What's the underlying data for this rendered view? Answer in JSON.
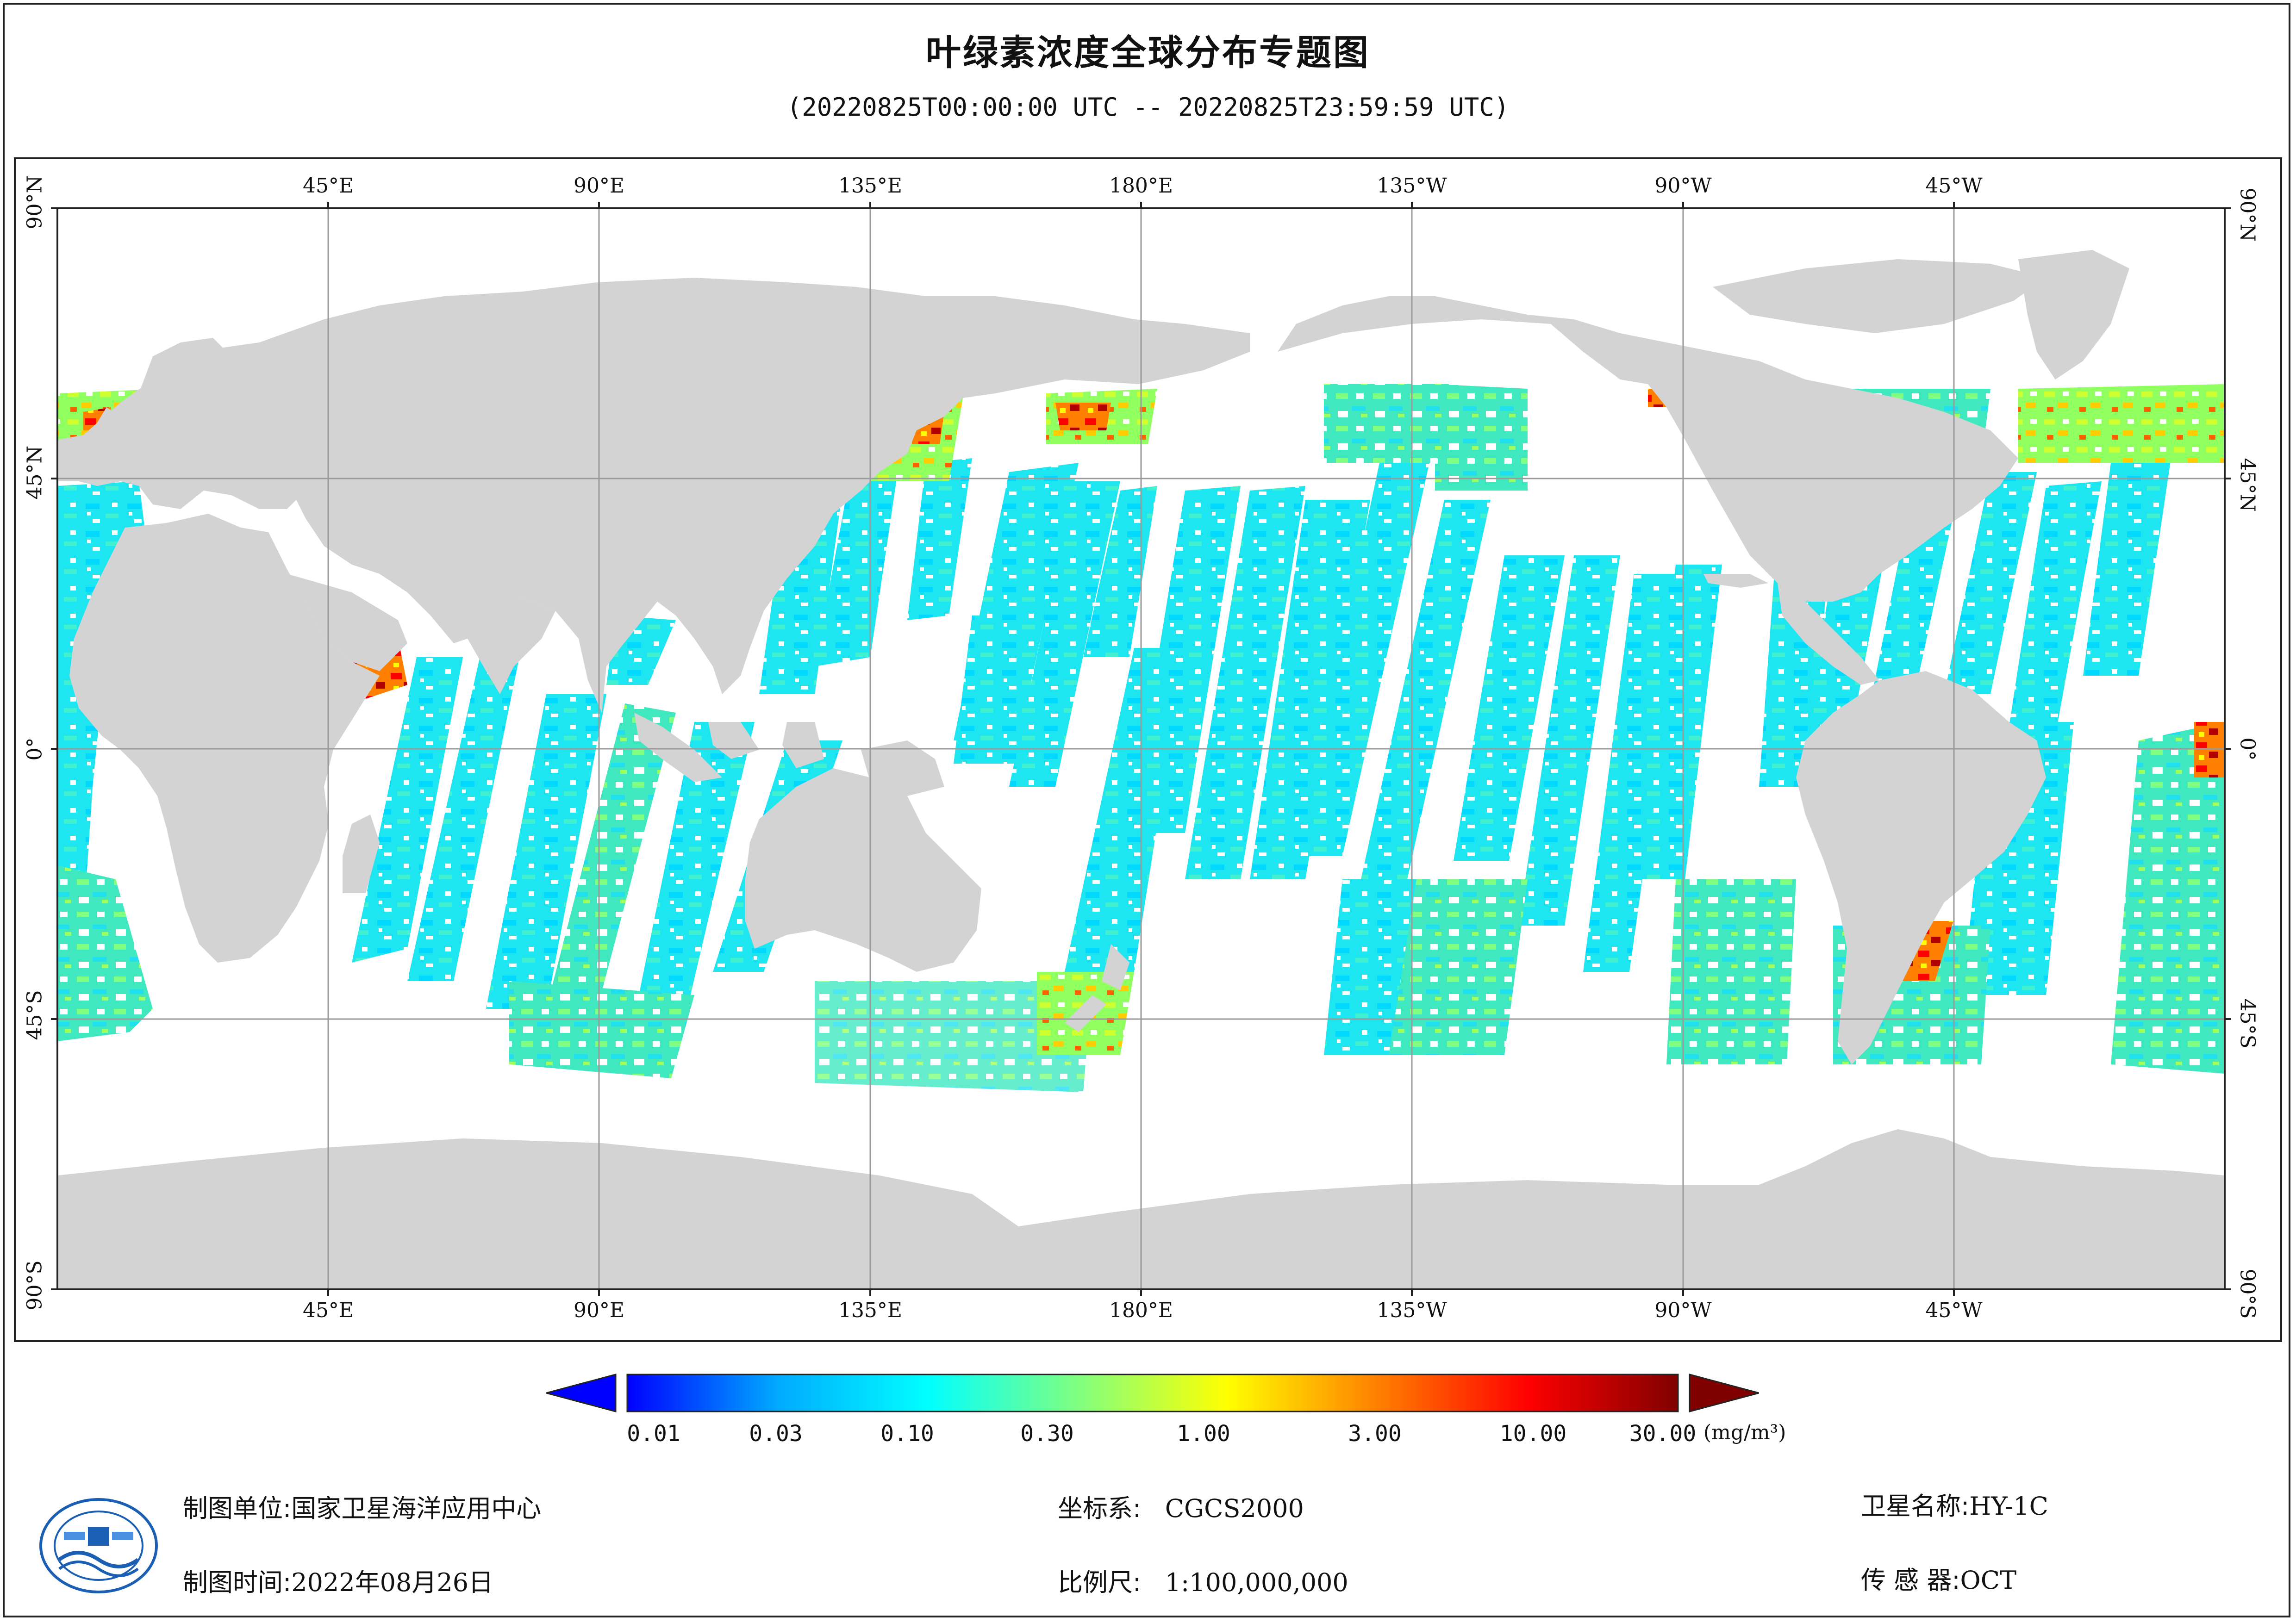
{
  "title": "叶绿素浓度全球分布专题图",
  "subtitle": "(20220825T00:00:00 UTC -- 20220825T23:59:59 UTC)",
  "map": {
    "lon_labels_top": [
      "45°E",
      "90°E",
      "135°E",
      "180°E",
      "135°W",
      "90°W",
      "45°W"
    ],
    "lon_labels_bottom": [
      "45°E",
      "90°E",
      "135°E",
      "180°E",
      "135°W",
      "90°W",
      "45°W"
    ],
    "lat_labels": [
      "90°N",
      "45°N",
      "0°",
      "45°S",
      "90°S"
    ],
    "land_color": "#d3d3d3",
    "grid_color": "#9a9a9a"
  },
  "legend": {
    "ticks": [
      "0.01",
      "0.03",
      "0.10",
      "0.30",
      "1.00",
      "3.00",
      "10.00",
      "30.00"
    ],
    "unit": "(mg/m³)",
    "colors": [
      "#0000ff",
      "#00aaff",
      "#00ffff",
      "#80ff80",
      "#ffff00",
      "#ff8000",
      "#ff0000",
      "#800000"
    ]
  },
  "meta": {
    "org_label": "制图单位:",
    "org_value": "国家卫星海洋应用中心",
    "date_label": "制图时间:",
    "date_value": "2022年08月26日",
    "crs_label": "坐标系:",
    "crs_value": "CGCS2000",
    "scale_label": "比例尺:",
    "scale_value": "1:100,000,000",
    "sat_label": "卫星名称:",
    "sat_value": "HY-1C",
    "sensor_label": "传 感 器:",
    "sensor_value": "OCT"
  }
}
